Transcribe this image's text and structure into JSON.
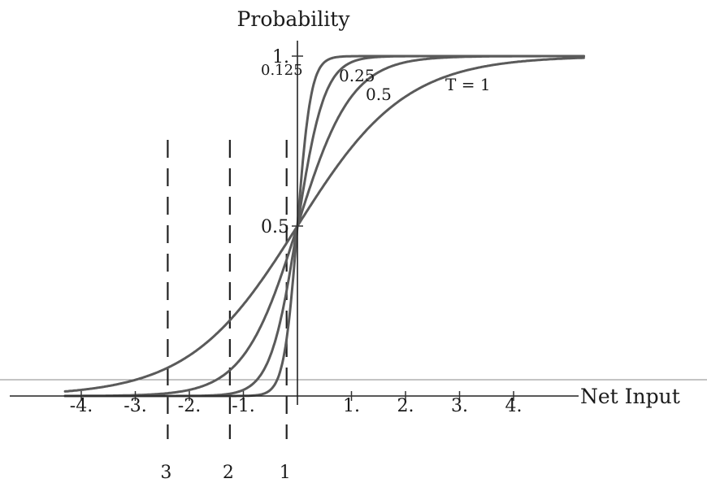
{
  "chart_data": {
    "type": "line",
    "title": "Probability",
    "xlabel": "Net Input",
    "ylabel": "",
    "xlim": [
      -5.5,
      7.5
    ],
    "ylim": [
      0,
      1
    ],
    "x_tick_labels": [
      {
        "x": -4,
        "label": "-4."
      },
      {
        "x": -3,
        "label": "-3."
      },
      {
        "x": -2,
        "label": "-2."
      },
      {
        "x": -1,
        "label": "-1."
      },
      {
        "x": 1,
        "label": "1."
      },
      {
        "x": 2,
        "label": "2."
      },
      {
        "x": 3,
        "label": "3."
      },
      {
        "x": 4,
        "label": "4."
      }
    ],
    "y_tick_labels": [
      {
        "y": 1,
        "label": "1."
      },
      {
        "y": 0.5,
        "label": "0.5"
      }
    ],
    "series": [
      {
        "name": "0.125",
        "temperature": 0.125
      },
      {
        "name": "0.25",
        "temperature": 0.25
      },
      {
        "name": "0.5",
        "temperature": 0.5
      },
      {
        "name": "T = 1",
        "temperature": 1
      }
    ],
    "function": "1 / (1 + exp(-x / T))",
    "x_range": [
      -4.3,
      5.3
    ],
    "guides": [
      {
        "x": -2.4,
        "label": "3"
      },
      {
        "x": -1.25,
        "label": "2"
      },
      {
        "x": -0.2,
        "label": "1"
      }
    ]
  }
}
